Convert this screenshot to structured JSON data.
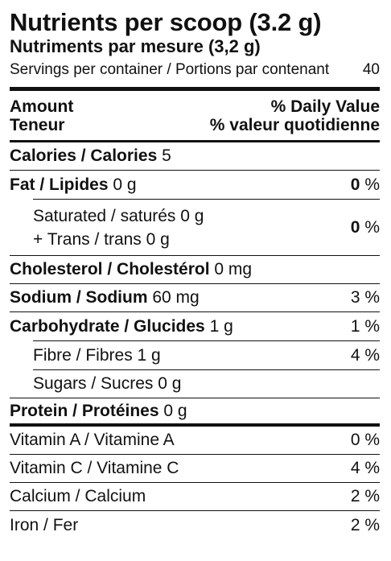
{
  "title": "Nutrients per scoop (3.2 g)",
  "title_fr": "Nutriments par mesure (3,2 g)",
  "servings": {
    "label": "Servings per container / Portions par contenant",
    "value": "40"
  },
  "header": {
    "amount_en": "Amount",
    "amount_fr": "Teneur",
    "dv_en": "% Daily Value",
    "dv_fr": "% valeur quotidienne"
  },
  "rows": {
    "calories": {
      "name": "Calories / Calories",
      "amount": "5"
    },
    "fat": {
      "name": "Fat / Lipides",
      "amount": "0 g",
      "dv_num": "0",
      "dv_pct": "%"
    },
    "saturated": {
      "line1": "Saturated / saturés 0 g",
      "line2": "+ Trans / trans 0 g",
      "dv_num": "0",
      "dv_pct": "%"
    },
    "cholesterol": {
      "name": "Cholesterol / Cholestérol",
      "amount": "0 mg"
    },
    "sodium": {
      "name": "Sodium / Sodium",
      "amount": "60 mg",
      "dv": "3 %"
    },
    "carbohydrate": {
      "name": "Carbohydrate / Glucides",
      "amount": "1 g",
      "dv": "1 %"
    },
    "fibre": {
      "name": "Fibre / Fibres 1 g",
      "dv": "4 %"
    },
    "sugars": {
      "name": "Sugars / Sucres 0 g"
    },
    "protein": {
      "name": "Protein / Protéines",
      "amount": "0 g"
    },
    "vitamin_a": {
      "name": "Vitamin A / Vitamine A",
      "dv": "0 %"
    },
    "vitamin_c": {
      "name": "Vitamin C / Vitamine C",
      "dv": "4 %"
    },
    "calcium": {
      "name": "Calcium / Calcium",
      "dv": "2 %"
    },
    "iron": {
      "name": "Iron / Fer",
      "dv": "2 %"
    }
  }
}
